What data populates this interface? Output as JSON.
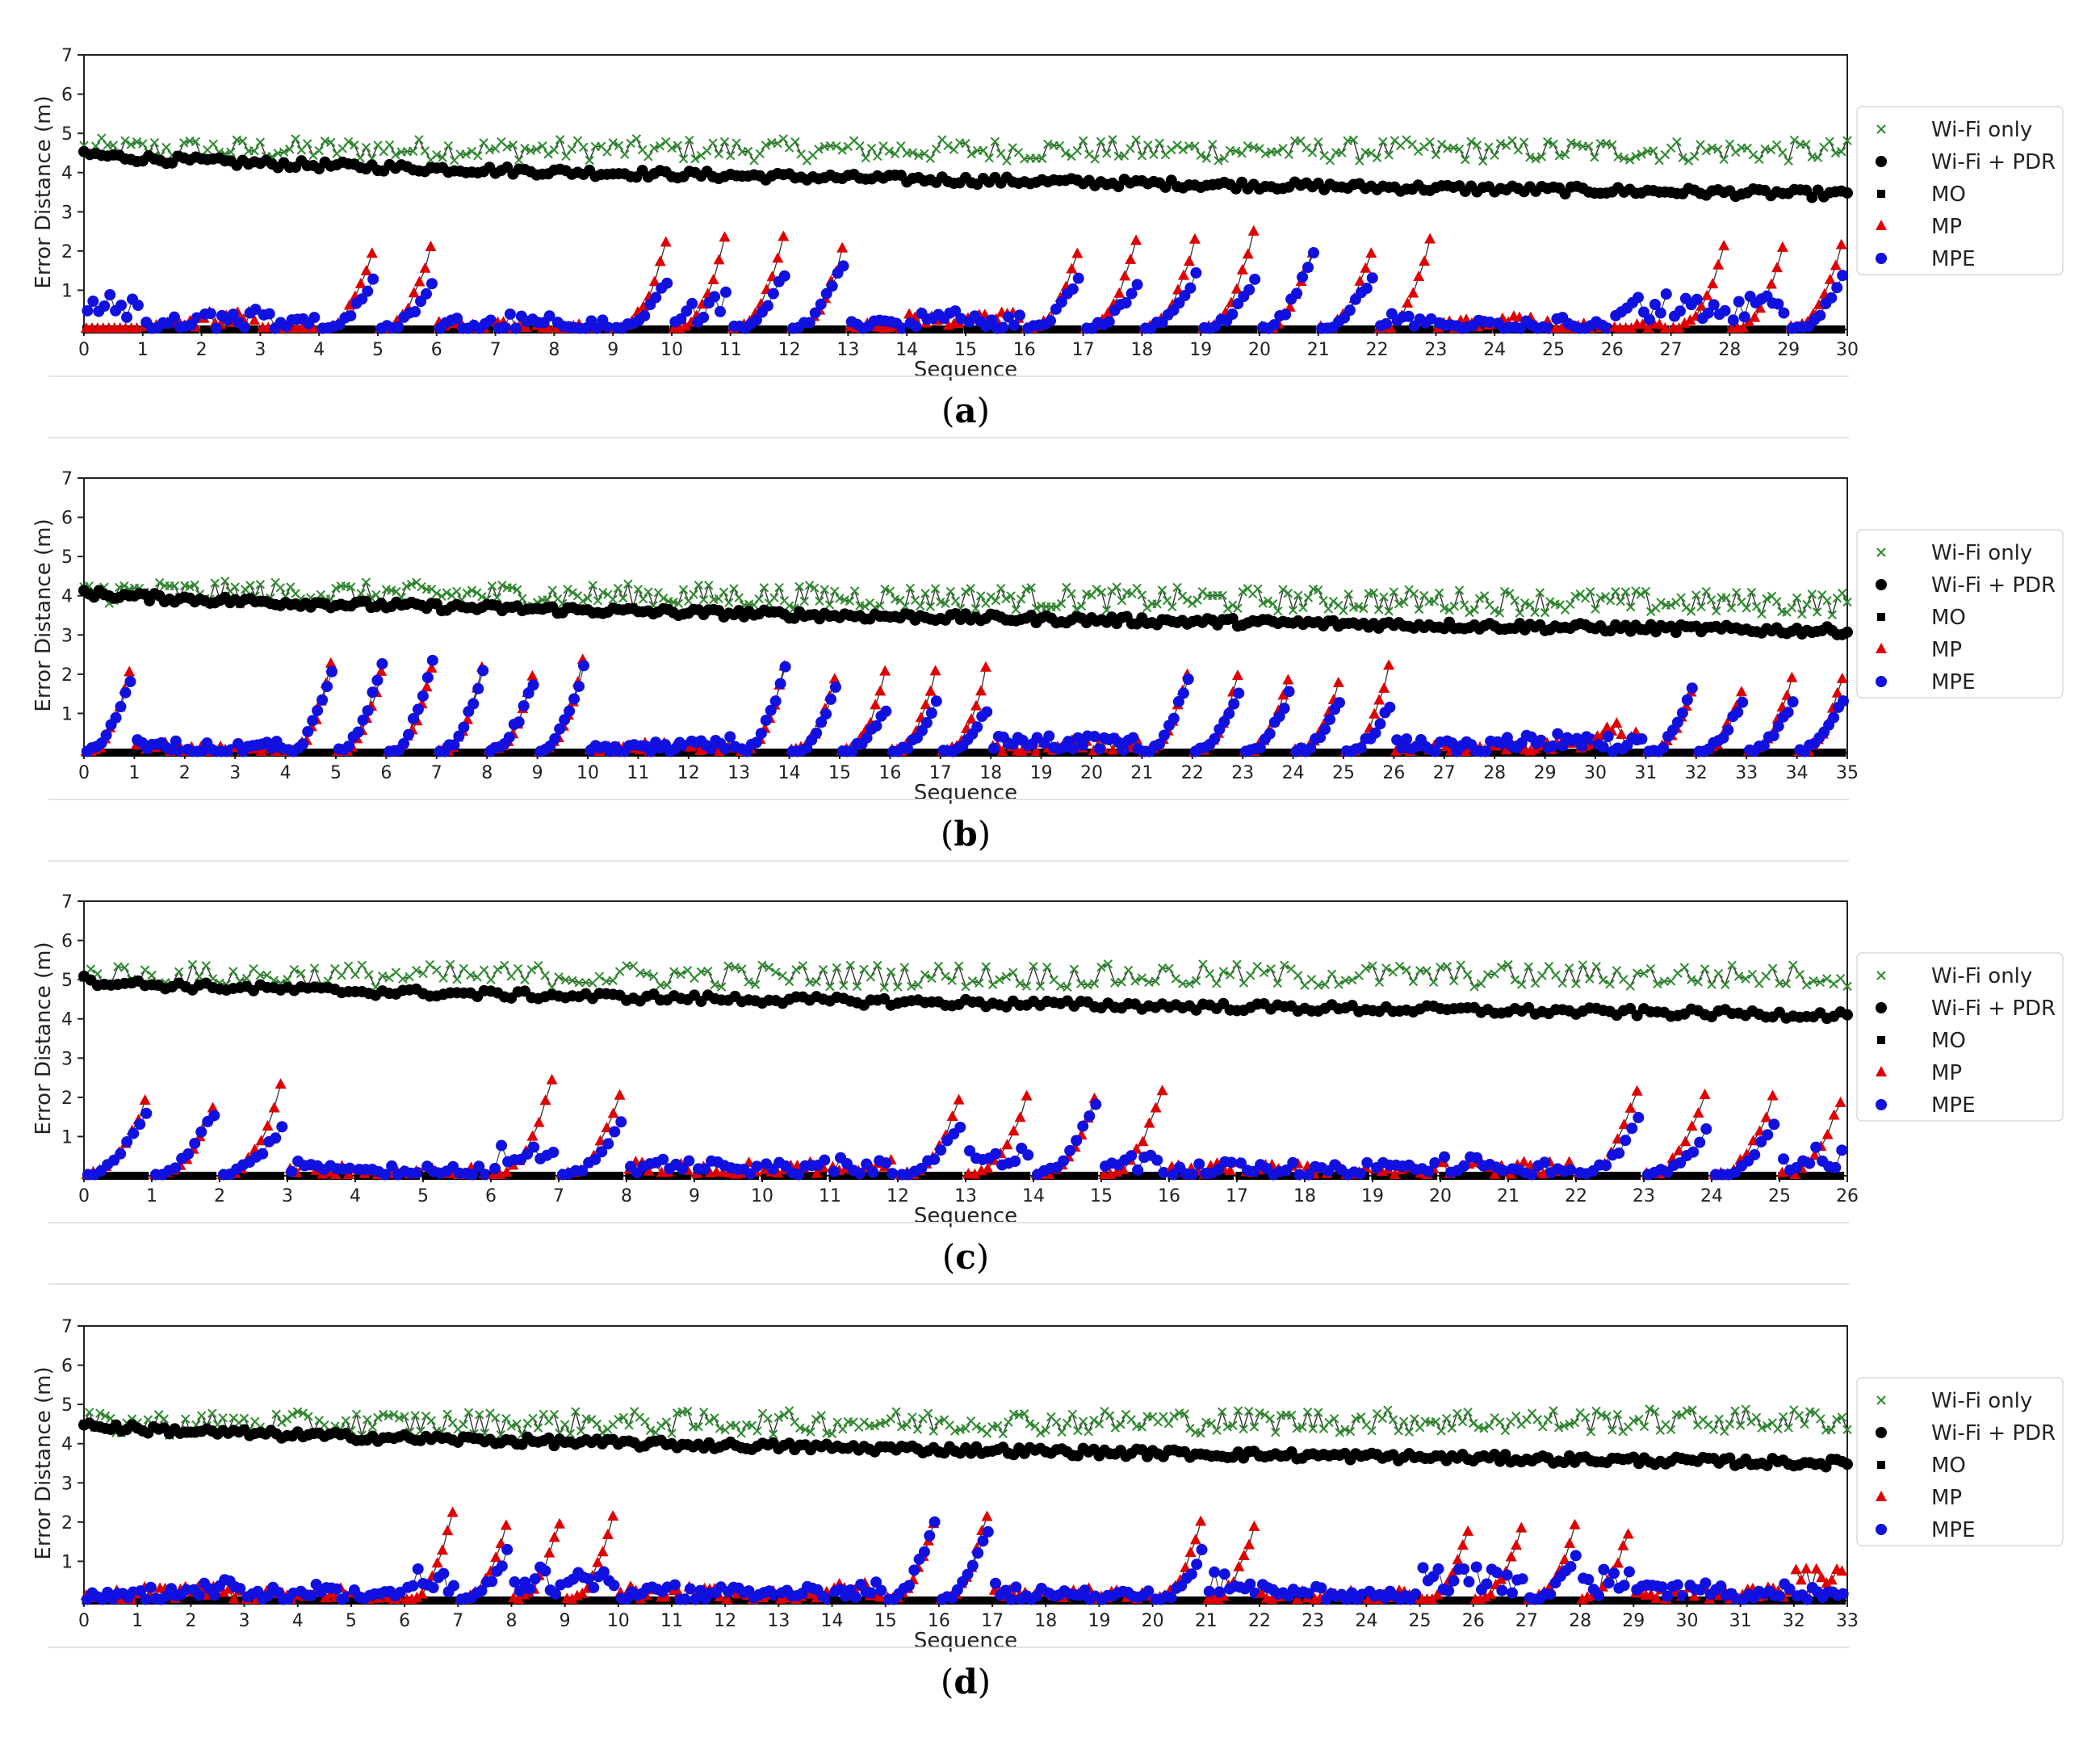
{
  "figure": {
    "legend": [
      {
        "label": "Wi-Fi only",
        "color": "#2e8b2e",
        "marker": "x-marker-icon"
      },
      {
        "label": "Wi-Fi + PDR",
        "color": "#000000",
        "marker": "circle-marker-icon"
      },
      {
        "label": "MO",
        "color": "#000000",
        "marker": "square-marker-icon"
      },
      {
        "label": "MP",
        "color": "#e00000",
        "marker": "triangle-marker-icon"
      },
      {
        "label": "MPE",
        "color": "#1010e0",
        "marker": "circle-marker-icon"
      }
    ],
    "ylabel": "Error Distance (m)",
    "xlabel": "Sequence",
    "colors": {
      "wifi": "#2e8b2e",
      "pdr": "#000000",
      "mo": "#000000",
      "mp": "#e00000",
      "mpe": "#1010e0",
      "line": "#333333"
    }
  },
  "chart_data": [
    {
      "type": "line",
      "panel": "a",
      "caption_letter": "a",
      "xlim": [
        0,
        30
      ],
      "ylim": [
        0,
        7
      ],
      "yticks": [
        "1",
        "2",
        "3",
        "4",
        "5",
        "6",
        "7"
      ],
      "xticks": [
        "0",
        "1",
        "2",
        "3",
        "4",
        "5",
        "6",
        "7",
        "8",
        "9",
        "10",
        "11",
        "12",
        "13",
        "14",
        "15",
        "16",
        "17",
        "18",
        "19",
        "20",
        "21",
        "22",
        "23",
        "24",
        "25",
        "26",
        "27",
        "28",
        "29",
        "30"
      ],
      "wifi": {
        "start": 4.6,
        "end": 4.55,
        "noise": 0.28
      },
      "pdr": {
        "start": 4.5,
        "end": 3.45,
        "noise": 0.1
      },
      "mp_peaks": [
        0,
        0.4,
        0.6,
        0.2,
        2.0,
        2.1,
        0.4,
        0.4,
        0.3,
        2.2,
        2.3,
        2.3,
        2.0,
        0.3,
        0.6,
        0.6,
        2.0,
        2.3,
        2.3,
        2.5,
        2.0,
        2.0,
        2.3,
        0.4,
        0.5,
        0.3,
        0.3,
        2.1,
        2.1,
        2.1,
        2.1,
        1.9
      ],
      "mpe_peaks": [
        1.0,
        0.4,
        0.6,
        0.6,
        1.2,
        1.1,
        0.4,
        0.5,
        0.3,
        1.2,
        1.0,
        1.4,
        1.7,
        0.4,
        0.6,
        0.5,
        1.3,
        1.2,
        1.4,
        1.3,
        2.0,
        1.4,
        0.6,
        0.4,
        0.3,
        0.4,
        1.0,
        1.0,
        1.0,
        1.3,
        0.9,
        0.9
      ]
    },
    {
      "type": "line",
      "panel": "b",
      "caption_letter": "b",
      "xlim": [
        0,
        35
      ],
      "ylim": [
        0,
        7
      ],
      "yticks": [
        "1",
        "2",
        "3",
        "4",
        "5",
        "6",
        "7"
      ],
      "xticks": [
        "0",
        "1",
        "2",
        "3",
        "4",
        "5",
        "6",
        "7",
        "8",
        "9",
        "10",
        "11",
        "12",
        "13",
        "14",
        "15",
        "16",
        "17",
        "18",
        "19",
        "20",
        "21",
        "22",
        "23",
        "24",
        "25",
        "26",
        "27",
        "28",
        "29",
        "30",
        "31",
        "32",
        "33",
        "34",
        "35"
      ],
      "wifi": {
        "start": 4.1,
        "end": 3.8,
        "noise": 0.3
      },
      "pdr": {
        "start": 4.1,
        "end": 3.1,
        "noise": 0.1
      },
      "mp_peaks": [
        2.1,
        0.4,
        0.3,
        0.3,
        2.2,
        2.0,
        2.1,
        2.1,
        1.9,
        2.3,
        0.3,
        0.4,
        0.4,
        2.2,
        1.8,
        2.0,
        2.0,
        2.1,
        0.4,
        0.5,
        0.5,
        2.0,
        1.9,
        1.8,
        1.8,
        2.2,
        0.4,
        0.3,
        0.4,
        0.5,
        0.9,
        1.6,
        1.6,
        1.9,
        1.9,
        1.9
      ],
      "mpe_peaks": [
        1.8,
        0.4,
        0.3,
        0.4,
        2.1,
        2.3,
        2.3,
        2.1,
        1.8,
        2.2,
        0.4,
        0.4,
        0.5,
        2.1,
        1.6,
        1.1,
        1.3,
        1.1,
        0.5,
        0.5,
        0.5,
        1.9,
        1.5,
        1.5,
        1.3,
        1.2,
        0.4,
        0.4,
        0.5,
        0.6,
        0.6,
        1.6,
        1.3,
        1.3,
        1.4,
        1.4
      ]
    },
    {
      "type": "line",
      "panel": "c",
      "caption_letter": "c",
      "xlim": [
        0,
        26
      ],
      "ylim": [
        0,
        7
      ],
      "yticks": [
        "1",
        "2",
        "3",
        "4",
        "5",
        "6",
        "7"
      ],
      "xticks": [
        "0",
        "1",
        "2",
        "3",
        "4",
        "5",
        "6",
        "7",
        "8",
        "9",
        "10",
        "11",
        "12",
        "13",
        "14",
        "15",
        "16",
        "17",
        "18",
        "19",
        "20",
        "21",
        "22",
        "23",
        "24",
        "25",
        "26"
      ],
      "wifi": {
        "start": 5.1,
        "end": 5.1,
        "noise": 0.3
      },
      "pdr": {
        "start": 5.0,
        "end": 4.1,
        "noise": 0.1
      },
      "mp_peaks": [
        1.9,
        1.7,
        2.3,
        0.4,
        0.3,
        0.4,
        2.4,
        2.1,
        0.5,
        0.5,
        0.5,
        0.6,
        1.9,
        2.0,
        1.9,
        2.2,
        0.5,
        0.5,
        0.4,
        0.4,
        0.5,
        0.5,
        2.2,
        2.1,
        2.0,
        1.9,
        1.9
      ],
      "mpe_peaks": [
        1.6,
        1.6,
        1.3,
        0.5,
        0.4,
        0.3,
        0.9,
        1.3,
        0.5,
        0.5,
        0.5,
        0.5,
        1.3,
        0.9,
        1.9,
        0.8,
        0.5,
        0.4,
        0.4,
        0.5,
        0.6,
        0.5,
        1.4,
        1.1,
        1.3,
        0.9,
        1.2
      ]
    },
    {
      "type": "line",
      "panel": "d",
      "caption_letter": "d",
      "xlim": [
        0,
        33
      ],
      "ylim": [
        0,
        7
      ],
      "yticks": [
        "1",
        "2",
        "3",
        "4",
        "5",
        "6",
        "7"
      ],
      "xticks": [
        "0",
        "1",
        "2",
        "3",
        "4",
        "5",
        "6",
        "7",
        "8",
        "9",
        "10",
        "11",
        "12",
        "13",
        "14",
        "15",
        "16",
        "17",
        "18",
        "19",
        "20",
        "21",
        "22",
        "23",
        "24",
        "25",
        "26",
        "27",
        "28",
        "29",
        "30",
        "31",
        "32",
        "33"
      ],
      "wifi": {
        "start": 4.5,
        "end": 4.6,
        "noise": 0.3
      },
      "pdr": {
        "start": 4.5,
        "end": 3.5,
        "noise": 0.1
      },
      "mp_peaks": [
        0.4,
        0.5,
        0.5,
        0.4,
        0.5,
        0.4,
        2.2,
        1.9,
        2.0,
        2.2,
        0.5,
        0.5,
        0.4,
        0.4,
        0.6,
        1.9,
        2.2,
        0.5,
        0.5,
        0.4,
        2.0,
        1.9,
        0.4,
        0.4,
        0.4,
        1.8,
        1.9,
        1.9,
        1.7,
        0.5,
        0.5,
        0.5,
        1.0,
        0.4
      ],
      "mpe_peaks": [
        0.4,
        0.4,
        0.6,
        0.4,
        0.5,
        0.4,
        0.9,
        1.2,
        1.0,
        1.0,
        0.5,
        0.5,
        0.5,
        0.5,
        0.6,
        2.0,
        1.8,
        0.5,
        0.4,
        0.4,
        1.2,
        0.8,
        0.5,
        0.4,
        0.4,
        1.0,
        1.0,
        1.1,
        0.9,
        0.6,
        0.6,
        0.5,
        0.4,
        0.4
      ]
    }
  ]
}
